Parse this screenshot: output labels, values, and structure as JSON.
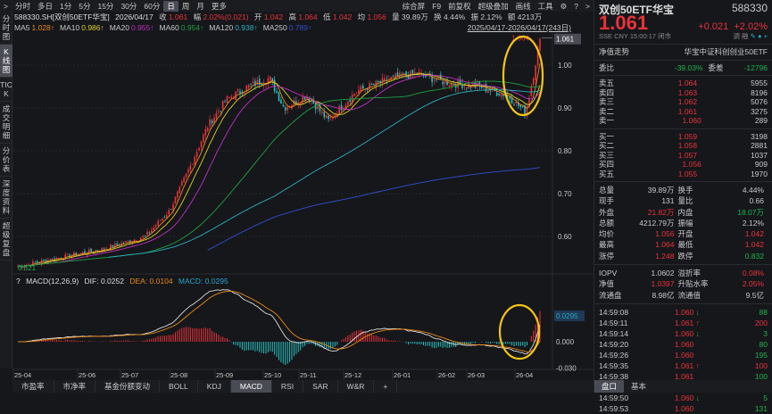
{
  "toolbar": {
    "items": [
      ">",
      "分时",
      "多日",
      "1分",
      "5分",
      "15分",
      "30分",
      "60分",
      "日",
      "周",
      "月",
      "更多"
    ],
    "active": "日",
    "right": [
      "综合屏",
      "F9",
      "前复权",
      "超级叠加",
      "画线",
      "工具",
      "⚙",
      "?",
      ">"
    ]
  },
  "info": {
    "code": "588330.SH[双创50ETF华宝]",
    "date": "2026/04/17",
    "close_label": "收",
    "close": "1.061",
    "chg_label": "幅",
    "chg": "2.02%(0.021)",
    "open_label": "开",
    "open": "1.042",
    "high_label": "高",
    "high": "1.064",
    "low_label": "低",
    "low": "1.042",
    "avg_label": "均",
    "avg": "1.056",
    "vol_label": "量",
    "vol": "39.89万",
    "turn_label": "换",
    "turn": "4.44%",
    "amp_label": "振",
    "amp": "2.12%",
    "amt_label": "额",
    "amt": "4213万"
  },
  "ma": [
    {
      "label": "MA5",
      "value": "1.028↑",
      "color": "#e88a1a"
    },
    {
      "label": "MA10",
      "value": "0.986↑",
      "color": "#d8d030"
    },
    {
      "label": "MA20",
      "value": "0.955↑",
      "color": "#c030c0"
    },
    {
      "label": "MA60",
      "value": "0.954↑",
      "color": "#1fa040"
    },
    {
      "label": "MA120",
      "value": "0.938↑",
      "color": "#2ab0c0"
    },
    {
      "label": "MA250",
      "value": "0.789↑",
      "color": "#3050d0"
    }
  ],
  "range": "2025/04/17-2026/04/17(243日)",
  "left_tabs": [
    "分时图",
    "K线图",
    "TICK",
    "成交明细",
    "分价表",
    "深度资料",
    "超级复盘"
  ],
  "left_active": "K线图",
  "bottom_tabs": [
    "市盈率",
    "市净率",
    "基金份额变动",
    "BOLL",
    "KDJ",
    "MACD",
    "RSI",
    "SAR",
    "W&R",
    "+"
  ],
  "bottom_active": "MACD",
  "macd": {
    "help": "?",
    "title": "MACD(12,26,9)",
    "dif": "DIF: 0.0252",
    "dea": "DEA: 0.0104",
    "macd": "MACD: 0.0295"
  },
  "chart_data": {
    "type": "candlestick",
    "price_ticks": [
      1.0,
      0.9,
      0.8,
      0.7,
      0.6
    ],
    "ylim": [
      0.5,
      1.08
    ],
    "last_price": "1.061",
    "high_mark": "1.064",
    "low_mark": "0.521",
    "x_ticks": [
      "25-04",
      "25-06",
      "25-07",
      "25-08",
      "25-09",
      "25-10",
      "25-11",
      "25-12",
      "26-01",
      "26-02",
      "26-03",
      "26-04"
    ],
    "close_path": [
      [
        "2025-04-17",
        0.53
      ],
      [
        "2025-05-15",
        0.55
      ],
      [
        "2025-06-15",
        0.57
      ],
      [
        "2025-07-15",
        0.6
      ],
      [
        "2025-08-01",
        0.66
      ],
      [
        "2025-08-15",
        0.76
      ],
      [
        "2025-08-28",
        0.86
      ],
      [
        "2025-09-10",
        0.92
      ],
      [
        "2025-09-25",
        0.95
      ],
      [
        "2025-10-10",
        0.97
      ],
      [
        "2025-10-20",
        0.9
      ],
      [
        "2025-11-05",
        0.93
      ],
      [
        "2025-11-20",
        0.87
      ],
      [
        "2025-12-10",
        0.94
      ],
      [
        "2026-01-05",
        0.97
      ],
      [
        "2026-01-20",
        0.98
      ],
      [
        "2026-02-10",
        0.96
      ],
      [
        "2026-03-05",
        0.95
      ],
      [
        "2026-03-25",
        0.93
      ],
      [
        "2026-04-07",
        0.89
      ],
      [
        "2026-04-12",
        0.97
      ],
      [
        "2026-04-17",
        1.061
      ]
    ],
    "macd_ticks": [
      "0.0295",
      "0.000",
      "-0.030"
    ],
    "macd_ylim": [
      -0.035,
      0.045
    ],
    "up_color": "#e8333a",
    "down_color": "#2ac0c0",
    "annotation_color": "#f5c518"
  },
  "rp": {
    "name": "双创50ETF华宝",
    "code": "588330",
    "price": "1.061",
    "chg": "+0.021",
    "pct": "+2.02%",
    "meta": "SSE  CNY  15:00:17  闭市",
    "icons": [
      "调",
      "融"
    ],
    "nav_trend": "净值走势",
    "index_name": "华宝中证科创创业50ETF",
    "wb_label": "委比",
    "wb": "-39.03%",
    "wc_label": "委差",
    "wc": "-12796",
    "sells": [
      [
        "卖五",
        "1.064",
        "5955"
      ],
      [
        "卖四",
        "1.063",
        "8196"
      ],
      [
        "卖三",
        "1.062",
        "5076"
      ],
      [
        "卖二",
        "1.061",
        "3275"
      ],
      [
        "卖一",
        "1.060",
        "289"
      ]
    ],
    "buys": [
      [
        "买一",
        "1.059",
        "3198"
      ],
      [
        "买二",
        "1.058",
        "2881"
      ],
      [
        "买三",
        "1.057",
        "1037"
      ],
      [
        "买四",
        "1.056",
        "909"
      ],
      [
        "买五",
        "1.055",
        "1970"
      ]
    ],
    "stats": [
      [
        "总量",
        "39.89万",
        "换手",
        "4.44%"
      ],
      [
        "现手",
        "131",
        "量比",
        "0.66"
      ],
      [
        "外盘",
        "21.82万",
        "内盘",
        "18.07万"
      ],
      [
        "总额",
        "4212.79万",
        "振幅",
        "2.12%"
      ],
      [
        "均价",
        "1.056",
        "开盘",
        "1.042"
      ],
      [
        "最高",
        "1.064",
        "最低",
        "1.042"
      ],
      [
        "涨停",
        "1.248",
        "跌停",
        "0.832"
      ]
    ],
    "stats2": [
      [
        "IOPV",
        "1.0602",
        "溢折率",
        "0.08%"
      ],
      [
        "净值",
        "1.0397",
        "升贴水率",
        "2.05%"
      ],
      [
        "流通盘",
        "8.98亿",
        "流通值",
        "9.5亿"
      ]
    ],
    "ticks": [
      [
        "14:59:08",
        "1.060",
        "down",
        "88"
      ],
      [
        "14:59:11",
        "1.061",
        "up",
        "200"
      ],
      [
        "14:59:14",
        "1.060",
        "down",
        "3"
      ],
      [
        "14:59:20",
        "1.060",
        "",
        "80"
      ],
      [
        "14:59:26",
        "1.060",
        "",
        "195"
      ],
      [
        "14:59:35",
        "1.061",
        "up",
        "100"
      ],
      [
        "14:59:38",
        "1.061",
        "",
        "100"
      ],
      [
        "14:59:44",
        "1.061",
        "",
        "202"
      ],
      [
        "14:59:50",
        "1.060",
        "down",
        "5"
      ],
      [
        "14:59:53",
        "1.060",
        "",
        "131"
      ]
    ],
    "tabs": [
      "盘口",
      "基本"
    ]
  }
}
